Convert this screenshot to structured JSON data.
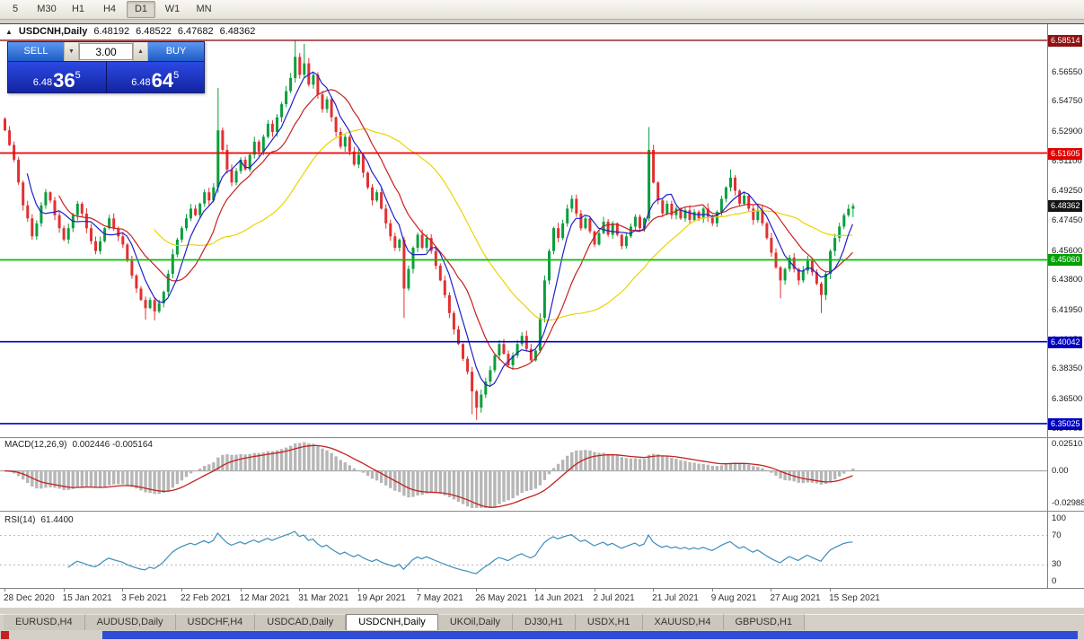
{
  "toolbar": {
    "periods": [
      {
        "label": "5",
        "active": false
      },
      {
        "label": "M30",
        "active": false
      },
      {
        "label": "H1",
        "active": false
      },
      {
        "label": "H4",
        "active": false
      },
      {
        "label": "D1",
        "active": true
      },
      {
        "label": "W1",
        "active": false
      },
      {
        "label": "MN",
        "active": false
      }
    ]
  },
  "icons": {
    "oct_toggle": "▲",
    "lot_down": "▼",
    "lot_up": "▲"
  },
  "chart": {
    "title": "USDCNH,Daily",
    "ohlc": {
      "open": "6.48192",
      "high": "6.48522",
      "low": "6.47682",
      "close": "6.48362"
    }
  },
  "trade_panel": {
    "sell_label": "SELL",
    "buy_label": "BUY",
    "lot_size": "3.00",
    "sell_price": {
      "prefix": "6.48",
      "big": "36",
      "sup": "5"
    },
    "buy_price": {
      "prefix": "6.48",
      "big": "64",
      "sup": "5"
    }
  },
  "price_scale": {
    "labels": [
      {
        "text": "6.56550",
        "value": 6.5655
      },
      {
        "text": "6.54750",
        "value": 6.5475
      },
      {
        "text": "6.52900",
        "value": 6.529
      },
      {
        "text": "6.51100",
        "value": 6.511
      },
      {
        "text": "6.49250",
        "value": 6.4925
      },
      {
        "text": "6.47450",
        "value": 6.4745
      },
      {
        "text": "6.45600",
        "value": 6.456
      },
      {
        "text": "6.43800",
        "value": 6.438
      },
      {
        "text": "6.41950",
        "value": 6.4195
      },
      {
        "text": "6.40150",
        "value": 6.4015
      },
      {
        "text": "6.38350",
        "value": 6.3835
      },
      {
        "text": "6.36500",
        "value": 6.365
      },
      {
        "text": "6.34700",
        "value": 6.347
      }
    ],
    "badges": [
      {
        "text": "6.58514",
        "value": 6.58514,
        "color": "#8f1010"
      },
      {
        "text": "6.51605",
        "value": 6.51605,
        "color": "#e00000"
      },
      {
        "text": "6.48362",
        "value": 6.48362,
        "color": "#141414"
      },
      {
        "text": "6.45060",
        "value": 6.4506,
        "color": "#00a000"
      },
      {
        "text": "6.40042",
        "value": 6.40042,
        "color": "#0000bf"
      },
      {
        "text": "6.35025",
        "value": 6.35025,
        "color": "#0000bf"
      }
    ]
  },
  "chart_data": {
    "type": "candlestick",
    "symbol": "USDCNH",
    "timeframe": "Daily",
    "y_range": [
      6.3425,
      6.595
    ],
    "candles": {
      "first_open": 6.537,
      "close": [
        6.53,
        6.521,
        6.512,
        6.498,
        6.484,
        6.476,
        6.465,
        6.473,
        6.484,
        6.492,
        6.487,
        6.478,
        6.47,
        6.463,
        6.47,
        6.478,
        6.485,
        6.479,
        6.47,
        6.462,
        6.456,
        6.462,
        6.47,
        6.476,
        6.47,
        6.465,
        6.46,
        6.45,
        6.441,
        6.433,
        6.426,
        6.421,
        6.426,
        6.419,
        6.424,
        6.431,
        6.442,
        6.454,
        6.463,
        6.47,
        6.476,
        6.482,
        6.478,
        6.485,
        6.492,
        6.487,
        6.495,
        6.53,
        6.518,
        6.506,
        6.498,
        6.505,
        6.512,
        6.506,
        6.515,
        6.523,
        6.517,
        6.526,
        6.534,
        6.529,
        6.538,
        6.546,
        6.554,
        6.562,
        6.575,
        6.564,
        6.571,
        6.558,
        6.564,
        6.552,
        6.543,
        6.549,
        6.538,
        6.529,
        6.52,
        6.526,
        6.517,
        6.509,
        6.515,
        6.504,
        6.495,
        6.487,
        6.492,
        6.482,
        6.473,
        6.465,
        6.458,
        6.463,
        6.433,
        6.445,
        6.458,
        6.466,
        6.458,
        6.464,
        6.456,
        6.447,
        6.438,
        6.429,
        6.418,
        6.408,
        6.399,
        6.39,
        6.382,
        6.37,
        6.36,
        6.368,
        6.376,
        6.383,
        6.392,
        6.399,
        6.393,
        6.386,
        6.392,
        6.399,
        6.404,
        6.396,
        6.389,
        6.395,
        6.415,
        6.438,
        6.456,
        6.47,
        6.464,
        6.473,
        6.482,
        6.488,
        6.479,
        6.47,
        6.476,
        6.468,
        6.46,
        6.467,
        6.474,
        6.466,
        6.473,
        6.466,
        6.459,
        6.465,
        6.471,
        6.477,
        6.47,
        6.476,
        6.518,
        6.498,
        6.487,
        6.479,
        6.485,
        6.478,
        6.482,
        6.476,
        6.481,
        6.475,
        6.48,
        6.476,
        6.482,
        6.477,
        6.473,
        6.48,
        6.488,
        6.495,
        6.501,
        6.493,
        6.485,
        6.49,
        6.482,
        6.475,
        6.481,
        6.473,
        6.464,
        6.455,
        6.446,
        6.438,
        6.445,
        6.452,
        6.445,
        6.438,
        6.444,
        6.45,
        6.443,
        6.436,
        6.429,
        6.442,
        6.456,
        6.464,
        6.471,
        6.478,
        6.4819,
        6.4836
      ],
      "overrides": {
        "31": {
          "l": 6.414
        },
        "33": {
          "l": 6.4135
        },
        "47": {
          "h": 6.556
        },
        "64": {
          "h": 6.5851
        },
        "66": {
          "h": 6.583
        },
        "88": {
          "l": 6.415
        },
        "103": {
          "l": 6.356
        },
        "104": {
          "l": 6.3525
        },
        "142": {
          "h": 6.532
        },
        "160": {
          "h": 6.506
        },
        "171": {
          "l": 6.427
        },
        "180": {
          "l": 6.418
        },
        "187": {
          "h": 6.48522,
          "l": 6.47682
        }
      }
    },
    "moving_averages": [
      {
        "period": 34,
        "color": "#ecd300"
      },
      {
        "period": 13,
        "color": "#c82020"
      },
      {
        "period": 6,
        "color": "#2020c8"
      }
    ],
    "h_lines": [
      {
        "price": 6.58514,
        "color": "#8f1010",
        "width": 1.4
      },
      {
        "price": 6.51605,
        "color": "#f00000",
        "width": 1.8
      },
      {
        "price": 6.4506,
        "color": "#00c000",
        "width": 1.8
      },
      {
        "price": 6.40042,
        "color": "#0000cc",
        "width": 1.6
      },
      {
        "price": 6.35025,
        "color": "#0000cc",
        "width": 1.6
      }
    ],
    "macd": {
      "label": "MACD(12,26,9)",
      "values_text": "0.002446 -0.005164",
      "params": [
        12,
        26,
        9
      ],
      "scale": {
        "max": 0.0251,
        "min": -0.0299,
        "labels": [
          {
            "text": "0.02510",
            "value": 0.0251
          },
          {
            "text": "0.00",
            "value": 0
          },
          {
            "text": "-0.02988",
            "value": -0.0299
          }
        ]
      }
    },
    "rsi": {
      "label": "RSI(14)",
      "value_text": "61.4400",
      "period": 14,
      "levels": [
        70,
        30
      ],
      "scale_labels": [
        {
          "text": "100",
          "value": 100
        },
        {
          "text": "70",
          "value": 70
        },
        {
          "text": "30",
          "value": 30
        },
        {
          "text": "0",
          "value": 0
        }
      ]
    },
    "x_labels": [
      {
        "text": "28 Dec 2020",
        "index": 0
      },
      {
        "text": "15 Jan 2021",
        "index": 13
      },
      {
        "text": "3 Feb 2021",
        "index": 26
      },
      {
        "text": "22 Feb 2021",
        "index": 39
      },
      {
        "text": "12 Mar 2021",
        "index": 52
      },
      {
        "text": "31 Mar 2021",
        "index": 65
      },
      {
        "text": "19 Apr 2021",
        "index": 78
      },
      {
        "text": "7 May 2021",
        "index": 91
      },
      {
        "text": "26 May 2021",
        "index": 104
      },
      {
        "text": "14 Jun 2021",
        "index": 117
      },
      {
        "text": "2 Jul 2021",
        "index": 130
      },
      {
        "text": "21 Jul 2021",
        "index": 143
      },
      {
        "text": "9 Aug 2021",
        "index": 156
      },
      {
        "text": "27 Aug 2021",
        "index": 169
      },
      {
        "text": "15 Sep 2021",
        "index": 182
      }
    ]
  },
  "tabs": [
    {
      "label": "EURUSD,H4",
      "active": false
    },
    {
      "label": "AUDUSD,Daily",
      "active": false
    },
    {
      "label": "USDCHF,H4",
      "active": false
    },
    {
      "label": "USDCAD,Daily",
      "active": false
    },
    {
      "label": "USDCNH,Daily",
      "active": true
    },
    {
      "label": "UKOil,Daily",
      "active": false
    },
    {
      "label": "DJ30,H1",
      "active": false
    },
    {
      "label": "USDX,H1",
      "active": false
    },
    {
      "label": "XAUUSD,H4",
      "active": false
    },
    {
      "label": "GBPUSD,H1",
      "active": false
    }
  ],
  "colors": {
    "bull": "#0a9e3c",
    "bear": "#e23030",
    "macd_hist": "#b6b6b6",
    "macd_signal": "#c42020",
    "rsi_line": "#3c8dbc"
  }
}
